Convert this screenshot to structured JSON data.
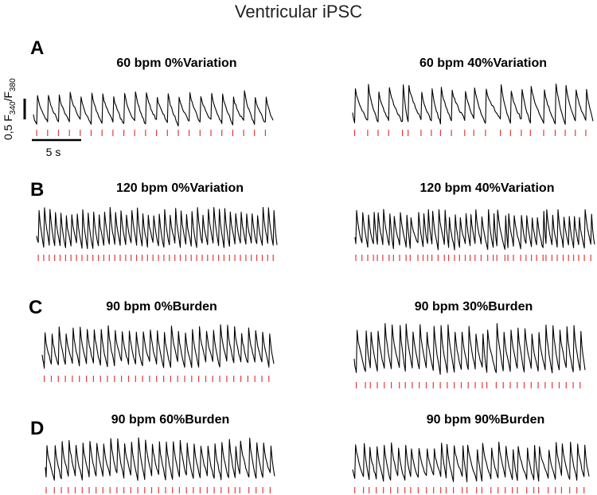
{
  "figure_title": "Ventricular iPSC",
  "scale_bars": {
    "vertical": {
      "value": "0,5",
      "f340": "340",
      "f380": "380"
    },
    "horizontal": {
      "label": "5 s",
      "seconds": 5
    }
  },
  "colors": {
    "trace": "#000000",
    "pacing_marker": "#e23a3a"
  },
  "chart_data": [
    {
      "type": "line",
      "panel": "A",
      "title": "60 bpm 0%Variation",
      "bpm": 60,
      "variation_pct": 0,
      "burden_pct": 0,
      "beats": 22
    },
    {
      "type": "line",
      "panel": "",
      "title": "60 bpm 40%Variation",
      "bpm": 60,
      "variation_pct": 40,
      "burden_pct": 0,
      "beats": 22
    },
    {
      "type": "line",
      "panel": "B",
      "title": "120 bpm 0%Variation",
      "bpm": 120,
      "variation_pct": 0,
      "burden_pct": 0,
      "beats": 44
    },
    {
      "type": "line",
      "panel": "",
      "title": "120 bpm 40%Variation",
      "bpm": 120,
      "variation_pct": 40,
      "burden_pct": 0,
      "beats": 44
    },
    {
      "type": "line",
      "panel": "C",
      "title": "90 bpm 0%Burden",
      "bpm": 90,
      "variation_pct": 0,
      "burden_pct": 0,
      "beats": 33
    },
    {
      "type": "line",
      "panel": "",
      "title": "90 bpm 30%Burden",
      "bpm": 90,
      "variation_pct": 0,
      "burden_pct": 30,
      "beats": 33
    },
    {
      "type": "line",
      "panel": "D",
      "title": "90 bpm 60%Burden",
      "bpm": 90,
      "variation_pct": 0,
      "burden_pct": 60,
      "beats": 33
    },
    {
      "type": "line",
      "panel": "",
      "title": "90 bpm 90%Burden",
      "bpm": 90,
      "variation_pct": 0,
      "burden_pct": 90,
      "beats": 33
    }
  ]
}
